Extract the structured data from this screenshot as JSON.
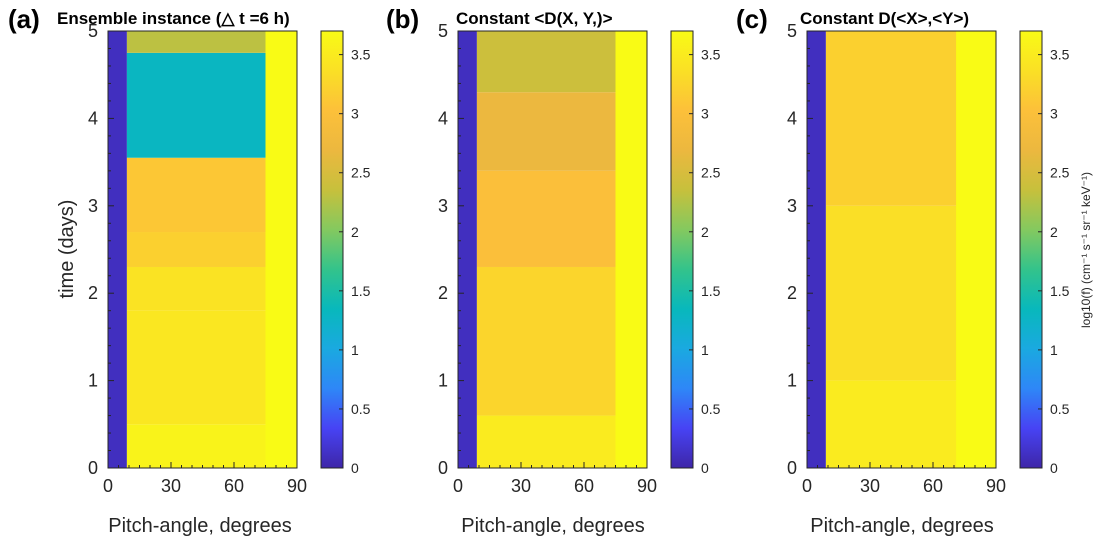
{
  "colors": {
    "parula_stops": [
      "#3e26a8",
      "#4743f4",
      "#2e87f7",
      "#1aa9e0",
      "#08b8bc",
      "#33c38b",
      "#84c95f",
      "#c7c03c",
      "#ecb83f",
      "#fcc03a",
      "#fae025",
      "#f9fb15"
    ],
    "axis": "#262626",
    "background": "#ffffff"
  },
  "chart_data": [
    {
      "type": "heatmap",
      "panel_label": "(a)",
      "title": "Ensemble instance (△ t =6 h)",
      "xlabel": "Pitch-angle, degrees",
      "ylabel": "time (days)",
      "xlim": [
        0,
        90
      ],
      "ylim": [
        0,
        5
      ],
      "xticks": [
        0,
        30,
        60,
        90
      ],
      "yticks": [
        0,
        1,
        2,
        3,
        4,
        5
      ],
      "clim": [
        0,
        3.7
      ],
      "colorbar_ticks": [
        0,
        0.5,
        1,
        1.5,
        2,
        2.5,
        3,
        3.5
      ],
      "colorbar_label": "",
      "regions": [
        {
          "x": [
            0,
            9
          ],
          "y": [
            0,
            5
          ],
          "value": 0.1
        },
        {
          "x": [
            9,
            90
          ],
          "y": [
            0,
            0.5
          ],
          "value": 3.6
        },
        {
          "x": [
            9,
            90
          ],
          "y": [
            0.5,
            1.8
          ],
          "value": 3.45
        },
        {
          "x": [
            9,
            90
          ],
          "y": [
            1.8,
            2.3
          ],
          "value": 3.4
        },
        {
          "x": [
            9,
            90
          ],
          "y": [
            2.3,
            2.7
          ],
          "value": 3.2
        },
        {
          "x": [
            9,
            90
          ],
          "y": [
            2.7,
            3.55
          ],
          "value": 3.1
        },
        {
          "x": [
            9,
            90
          ],
          "y": [
            3.55,
            4.75
          ],
          "value": 1.3
        },
        {
          "x": [
            9,
            90
          ],
          "y": [
            4.75,
            5
          ],
          "value": 2.3
        },
        {
          "x": [
            75,
            90
          ],
          "y": [
            0,
            5
          ],
          "value": 3.7
        }
      ]
    },
    {
      "type": "heatmap",
      "panel_label": "(b)",
      "title": "Constant <D(X, Y,)>",
      "xlabel": "Pitch-angle, degrees",
      "ylabel": "",
      "xlim": [
        0,
        90
      ],
      "ylim": [
        0,
        5
      ],
      "xticks": [
        0,
        30,
        60,
        90
      ],
      "yticks": [
        0,
        1,
        2,
        3,
        4,
        5
      ],
      "clim": [
        0,
        3.7
      ],
      "colorbar_ticks": [
        0,
        0.5,
        1,
        1.5,
        2,
        2.5,
        3,
        3.5
      ],
      "colorbar_label": "",
      "regions": [
        {
          "x": [
            0,
            9
          ],
          "y": [
            0,
            5
          ],
          "value": 0.1
        },
        {
          "x": [
            9,
            90
          ],
          "y": [
            0,
            0.6
          ],
          "value": 3.5
        },
        {
          "x": [
            9,
            90
          ],
          "y": [
            0.6,
            2.3
          ],
          "value": 3.25
        },
        {
          "x": [
            9,
            90
          ],
          "y": [
            2.3,
            3.4
          ],
          "value": 3.0
        },
        {
          "x": [
            9,
            90
          ],
          "y": [
            3.4,
            4.3
          ],
          "value": 2.7
        },
        {
          "x": [
            9,
            90
          ],
          "y": [
            4.3,
            5
          ],
          "value": 2.4
        },
        {
          "x": [
            75,
            90
          ],
          "y": [
            0,
            5
          ],
          "value": 3.7
        }
      ]
    },
    {
      "type": "heatmap",
      "panel_label": "(c)",
      "title": "Constant D(<X>,<Y>)",
      "xlabel": "Pitch-angle, degrees",
      "ylabel": "",
      "xlim": [
        0,
        90
      ],
      "ylim": [
        0,
        5
      ],
      "xticks": [
        0,
        30,
        60,
        90
      ],
      "yticks": [
        0,
        1,
        2,
        3,
        4,
        5
      ],
      "clim": [
        0,
        3.7
      ],
      "colorbar_ticks": [
        0,
        0.5,
        1,
        1.5,
        2,
        2.5,
        3,
        3.5
      ],
      "colorbar_label": "log10(f) (cm⁻¹ s⁻¹ sr⁻¹ keV⁻¹)",
      "regions": [
        {
          "x": [
            0,
            9
          ],
          "y": [
            0,
            5
          ],
          "value": 0.1
        },
        {
          "x": [
            9,
            90
          ],
          "y": [
            0,
            1.0
          ],
          "value": 3.5
        },
        {
          "x": [
            9,
            90
          ],
          "y": [
            1.0,
            3.0
          ],
          "value": 3.35
        },
        {
          "x": [
            9,
            90
          ],
          "y": [
            3.0,
            5
          ],
          "value": 3.2
        },
        {
          "x": [
            71,
            90
          ],
          "y": [
            0,
            5
          ],
          "value": 3.7
        }
      ]
    }
  ]
}
